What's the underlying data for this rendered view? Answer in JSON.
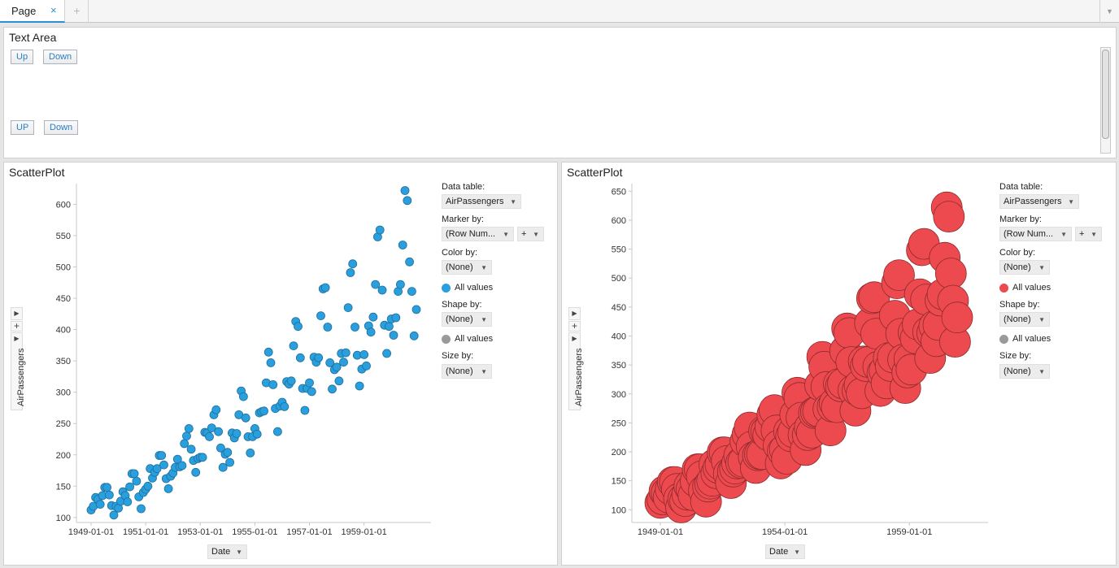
{
  "tabs": {
    "page_label": "Page",
    "close": "×",
    "add": "+",
    "menu": "▼"
  },
  "text_area": {
    "title": "Text Area",
    "buttons": [
      "Up",
      "Down",
      "UP",
      "Down"
    ]
  },
  "plots": [
    {
      "title": "ScatterPlot",
      "y_axis_label": "AirPassengers",
      "x_axis_label": "Date",
      "marker_color": "#2a9fde",
      "y_ticks": [
        "100",
        "150",
        "200",
        "250",
        "300",
        "350",
        "400",
        "450",
        "500",
        "550",
        "600"
      ],
      "x_ticks": [
        "1949-01-01",
        "1951-01-01",
        "1953-01-01",
        "1955-01-01",
        "1957-01-01",
        "1959-01-01"
      ],
      "controls": {
        "data_table_label": "Data table:",
        "data_table_value": "AirPassengers",
        "marker_by_label": "Marker by:",
        "marker_by_value": "(Row Num...",
        "marker_add": "+",
        "color_by_label": "Color by:",
        "color_by_value": "(None)",
        "color_legend": "All values",
        "shape_by_label": "Shape by:",
        "shape_by_value": "(None)",
        "shape_legend": "All values",
        "size_by_label": "Size by:",
        "size_by_value": "(None)"
      }
    },
    {
      "title": "ScatterPlot",
      "y_axis_label": "AirPassengers",
      "x_axis_label": "Date",
      "marker_color": "#ec4a4e",
      "y_ticks": [
        "100",
        "150",
        "200",
        "250",
        "300",
        "350",
        "400",
        "450",
        "500",
        "550",
        "600",
        "650"
      ],
      "x_ticks": [
        "1949-01-01",
        "1954-01-01",
        "1959-01-01"
      ],
      "controls": {
        "data_table_label": "Data table:",
        "data_table_value": "AirPassengers",
        "marker_by_label": "Marker by:",
        "marker_by_value": "(Row Num...",
        "marker_add": "+",
        "color_by_label": "Color by:",
        "color_by_value": "(None)",
        "color_legend": "All values",
        "shape_by_label": "Shape by:",
        "shape_by_value": "(None)",
        "shape_legend": "All values",
        "size_by_label": "Size by:",
        "size_by_value": "(None)"
      }
    }
  ],
  "chart_data": [
    {
      "type": "scatter",
      "xlabel": "Date",
      "ylabel": "AirPassengers",
      "x_start": "1949-01-01",
      "x_step": "monthly",
      "ylim": [
        92,
        633
      ],
      "series": [
        {
          "values": [
            112,
            118,
            132,
            129,
            121,
            135,
            148,
            148,
            136,
            119,
            104,
            118,
            115,
            126,
            141,
            135,
            125,
            149,
            170,
            170,
            158,
            133,
            114,
            140,
            145,
            150,
            178,
            163,
            172,
            178,
            199,
            199,
            184,
            162,
            146,
            166,
            171,
            180,
            193,
            181,
            183,
            218,
            230,
            242,
            209,
            191,
            172,
            194,
            196,
            196,
            236,
            235,
            229,
            243,
            264,
            272,
            237,
            211,
            180,
            201,
            204,
            188,
            235,
            227,
            234,
            264,
            302,
            293,
            259,
            229,
            203,
            229,
            242,
            233,
            267,
            269,
            270,
            315,
            364,
            347,
            312,
            274,
            237,
            278,
            284,
            277,
            317,
            313,
            318,
            374,
            413,
            405,
            355,
            306,
            271,
            306,
            315,
            301,
            356,
            348,
            355,
            422,
            465,
            467,
            404,
            347,
            305,
            336,
            340,
            318,
            362,
            348,
            363,
            435,
            491,
            505,
            404,
            359,
            310,
            337,
            360,
            342,
            406,
            396,
            420,
            472,
            548,
            559,
            463,
            407,
            362,
            405,
            417,
            391,
            419,
            461,
            472,
            535,
            622,
            606,
            508,
            461,
            390,
            432
          ]
        }
      ],
      "marker_size": "uniform small"
    },
    {
      "type": "scatter",
      "xlabel": "Date",
      "ylabel": "AirPassengers",
      "x_start": "1949-01-01",
      "x_step": "monthly",
      "ylim": [
        78,
        663
      ],
      "series": [
        {
          "values": [
            112,
            118,
            132,
            129,
            121,
            135,
            148,
            148,
            136,
            119,
            104,
            118,
            115,
            126,
            141,
            135,
            125,
            149,
            170,
            170,
            158,
            133,
            114,
            140,
            145,
            150,
            178,
            163,
            172,
            178,
            199,
            199,
            184,
            162,
            146,
            166,
            171,
            180,
            193,
            181,
            183,
            218,
            230,
            242,
            209,
            191,
            172,
            194,
            196,
            196,
            236,
            235,
            229,
            243,
            264,
            272,
            237,
            211,
            180,
            201,
            204,
            188,
            235,
            227,
            234,
            264,
            302,
            293,
            259,
            229,
            203,
            229,
            242,
            233,
            267,
            269,
            270,
            315,
            364,
            347,
            312,
            274,
            237,
            278,
            284,
            277,
            317,
            313,
            318,
            374,
            413,
            405,
            355,
            306,
            271,
            306,
            315,
            301,
            356,
            348,
            355,
            422,
            465,
            467,
            404,
            347,
            305,
            336,
            340,
            318,
            362,
            348,
            363,
            435,
            491,
            505,
            404,
            359,
            310,
            337,
            360,
            342,
            406,
            396,
            420,
            472,
            548,
            559,
            463,
            407,
            362,
            405,
            417,
            391,
            419,
            461,
            472,
            535,
            622,
            606,
            508,
            461,
            390,
            432
          ]
        }
      ],
      "marker_size": "uniform large"
    }
  ]
}
